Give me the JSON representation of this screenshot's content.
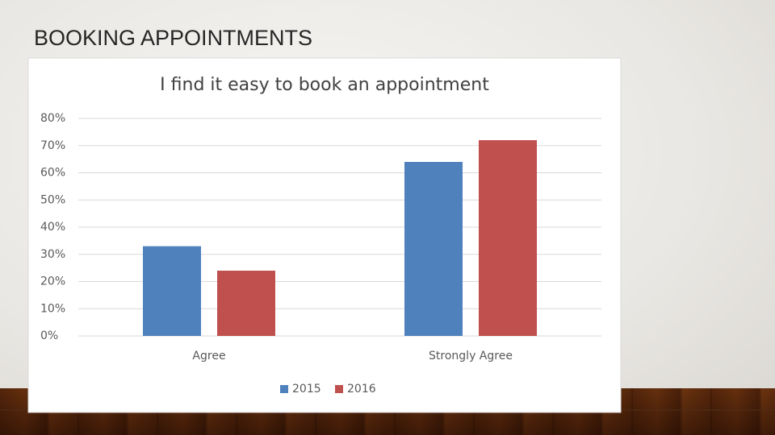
{
  "slide": {
    "title": "BOOKING APPOINTMENTS"
  },
  "chart_data": {
    "type": "bar",
    "title": "I find it easy to book an appointment",
    "categories": [
      "Agree",
      "Strongly Agree"
    ],
    "series": [
      {
        "name": "2015",
        "color": "#4f81bd",
        "values": [
          33,
          64
        ]
      },
      {
        "name": "2016",
        "color": "#c0504d",
        "values": [
          24,
          72
        ]
      }
    ],
    "ylim": [
      0,
      80
    ],
    "yticks": [
      {
        "value": 0,
        "label": "0%"
      },
      {
        "value": 10,
        "label": "10%"
      },
      {
        "value": 20,
        "label": "20%"
      },
      {
        "value": 30,
        "label": "30%"
      },
      {
        "value": 40,
        "label": "40%"
      },
      {
        "value": 50,
        "label": "50%"
      },
      {
        "value": 60,
        "label": "60%"
      },
      {
        "value": 70,
        "label": "70%"
      },
      {
        "value": 80,
        "label": "80%"
      }
    ],
    "grid": true,
    "legend": "bottom"
  }
}
